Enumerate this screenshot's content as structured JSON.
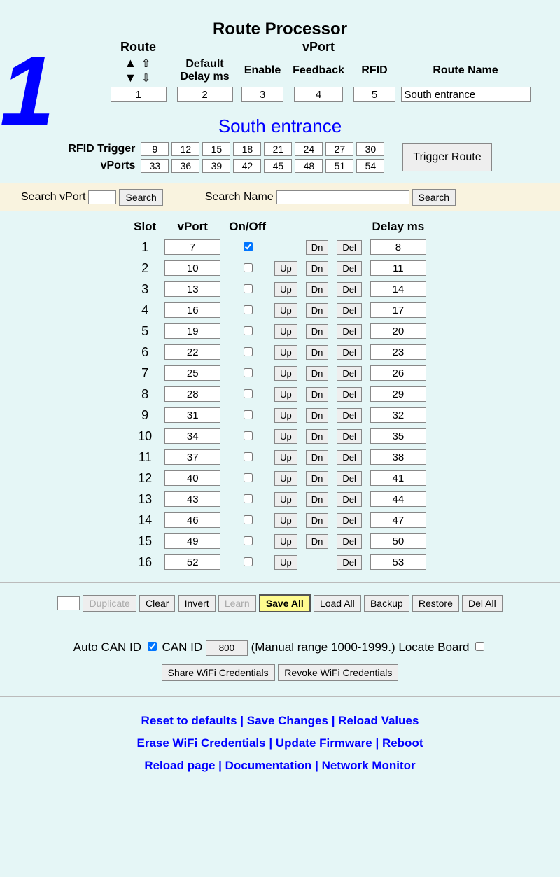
{
  "title": "Route Processor",
  "big_number": "1",
  "headers": {
    "route": "Route",
    "vport": "vPort",
    "default_delay": "Default Delay ms",
    "enable": "Enable",
    "feedback": "Feedback",
    "rfid": "RFID",
    "route_name": "Route Name"
  },
  "top_inputs": {
    "route": "1",
    "default_delay": "2",
    "enable": "3",
    "feedback": "4",
    "rfid": "5",
    "route_name": "South entrance"
  },
  "route_title": "South entrance",
  "rfid": {
    "label1": "RFID Trigger",
    "label2": "vPorts",
    "row1": [
      "9",
      "12",
      "15",
      "18",
      "21",
      "24",
      "27",
      "30"
    ],
    "row2": [
      "33",
      "36",
      "39",
      "42",
      "45",
      "48",
      "51",
      "54"
    ],
    "trigger_btn": "Trigger Route"
  },
  "search": {
    "vport_label": "Search vPort",
    "name_label": "Search Name",
    "btn": "Search"
  },
  "slot_headers": {
    "slot": "Slot",
    "vport": "vPort",
    "onoff": "On/Off",
    "delay": "Delay ms"
  },
  "buttons": {
    "up": "Up",
    "dn": "Dn",
    "del": "Del"
  },
  "slots": [
    {
      "n": 1,
      "vport": "7",
      "on": true,
      "up": false,
      "dn": true,
      "delay": "8"
    },
    {
      "n": 2,
      "vport": "10",
      "on": false,
      "up": true,
      "dn": true,
      "delay": "11"
    },
    {
      "n": 3,
      "vport": "13",
      "on": false,
      "up": true,
      "dn": true,
      "delay": "14"
    },
    {
      "n": 4,
      "vport": "16",
      "on": false,
      "up": true,
      "dn": true,
      "delay": "17"
    },
    {
      "n": 5,
      "vport": "19",
      "on": false,
      "up": true,
      "dn": true,
      "delay": "20"
    },
    {
      "n": 6,
      "vport": "22",
      "on": false,
      "up": true,
      "dn": true,
      "delay": "23"
    },
    {
      "n": 7,
      "vport": "25",
      "on": false,
      "up": true,
      "dn": true,
      "delay": "26"
    },
    {
      "n": 8,
      "vport": "28",
      "on": false,
      "up": true,
      "dn": true,
      "delay": "29"
    },
    {
      "n": 9,
      "vport": "31",
      "on": false,
      "up": true,
      "dn": true,
      "delay": "32"
    },
    {
      "n": 10,
      "vport": "34",
      "on": false,
      "up": true,
      "dn": true,
      "delay": "35"
    },
    {
      "n": 11,
      "vport": "37",
      "on": false,
      "up": true,
      "dn": true,
      "delay": "38"
    },
    {
      "n": 12,
      "vport": "40",
      "on": false,
      "up": true,
      "dn": true,
      "delay": "41"
    },
    {
      "n": 13,
      "vport": "43",
      "on": false,
      "up": true,
      "dn": true,
      "delay": "44"
    },
    {
      "n": 14,
      "vport": "46",
      "on": false,
      "up": true,
      "dn": true,
      "delay": "47"
    },
    {
      "n": 15,
      "vport": "49",
      "on": false,
      "up": true,
      "dn": true,
      "delay": "50"
    },
    {
      "n": 16,
      "vport": "52",
      "on": false,
      "up": true,
      "dn": false,
      "delay": "53"
    }
  ],
  "bottom": {
    "duplicate": "Duplicate",
    "clear": "Clear",
    "invert": "Invert",
    "learn": "Learn",
    "save_all": "Save All",
    "load_all": "Load All",
    "backup": "Backup",
    "restore": "Restore",
    "del_all": "Del All"
  },
  "can": {
    "auto_label": "Auto CAN ID",
    "canid_label": "CAN ID",
    "canid_value": "800",
    "manual_text": "(Manual range 1000-1999.) Locate Board",
    "share": "Share WiFi Credentials",
    "revoke": "Revoke WiFi Credentials"
  },
  "links": [
    [
      "Reset to defaults",
      "Save Changes",
      "Reload Values"
    ],
    [
      "Erase WiFi Credentials",
      "Update Firmware",
      "Reboot"
    ],
    [
      "Reload page",
      "Documentation",
      "Network Monitor"
    ]
  ]
}
